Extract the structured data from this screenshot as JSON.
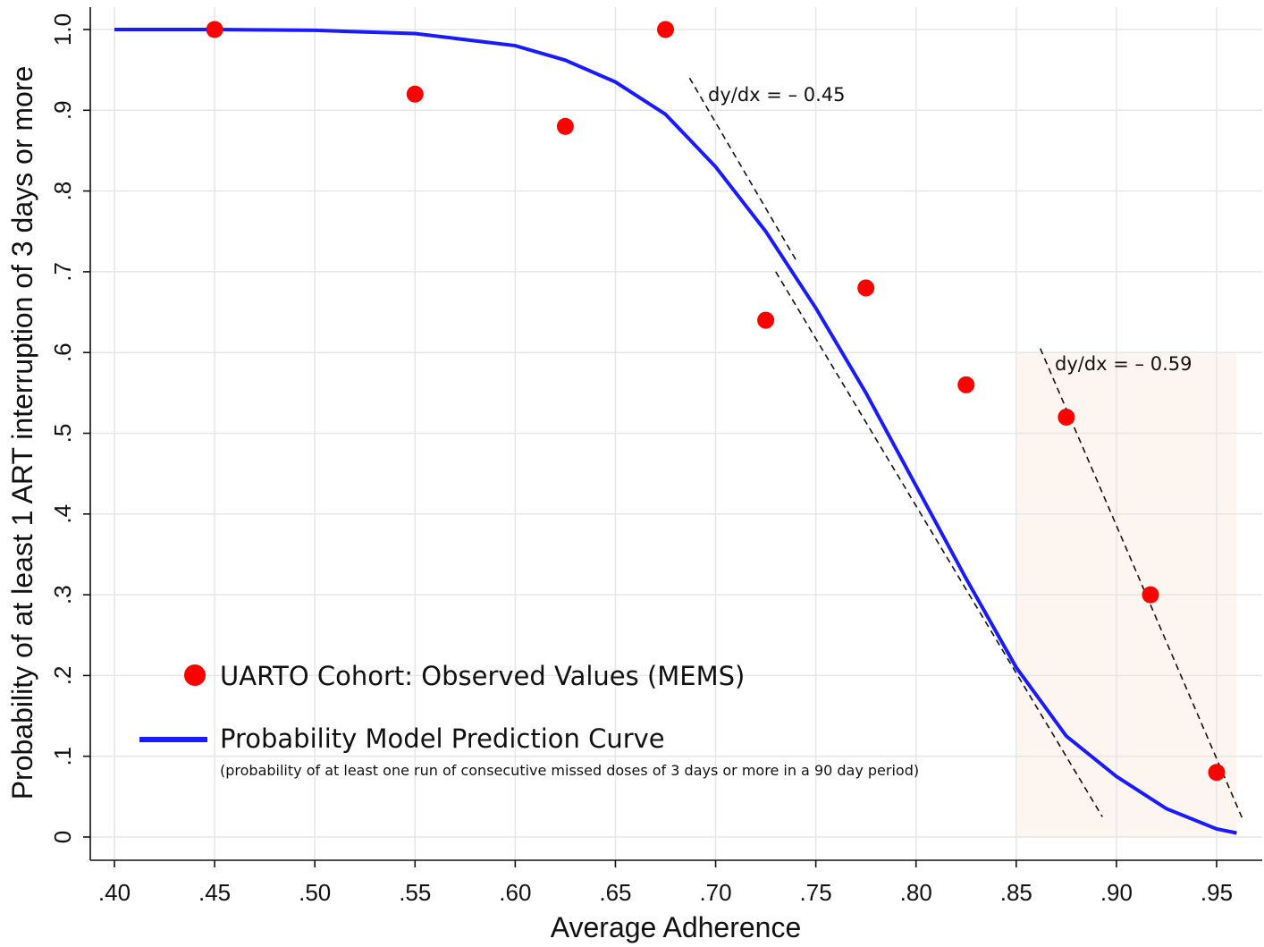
{
  "chart_data": {
    "type": "scatter",
    "xlabel": "Average Adherence",
    "ylabel": "Probability of at least 1 ART interruption of 3 days or more",
    "xlim": [
      0.4,
      0.96
    ],
    "ylim": [
      0,
      1.0
    ],
    "x_ticks": [
      0.4,
      0.45,
      0.5,
      0.55,
      0.6,
      0.65,
      0.7,
      0.75,
      0.8,
      0.85,
      0.9,
      0.95
    ],
    "x_tick_labels": [
      ".40",
      ".45",
      ".50",
      ".55",
      ".60",
      ".65",
      ".70",
      ".75",
      ".80",
      ".85",
      ".90",
      ".95"
    ],
    "y_ticks": [
      0,
      0.1,
      0.2,
      0.3,
      0.4,
      0.5,
      0.6,
      0.7,
      0.8,
      0.9,
      1.0
    ],
    "y_tick_labels": [
      "0",
      ".1",
      ".2",
      ".3",
      ".4",
      ".5",
      ".6",
      ".7",
      ".8",
      ".9",
      "1.0"
    ],
    "grid": true,
    "series": [
      {
        "name": "UARTO Cohort: Observed Values (MEMS)",
        "kind": "scatter",
        "color": "#ff0000",
        "x": [
          0.45,
          0.55,
          0.625,
          0.675,
          0.725,
          0.775,
          0.825,
          0.875,
          0.917,
          0.95
        ],
        "y": [
          1.0,
          0.92,
          0.88,
          1.0,
          0.64,
          0.68,
          0.56,
          0.52,
          0.3,
          0.08
        ]
      },
      {
        "name": "Probability Model Prediction Curve",
        "note": "(probability of at least one run of consecutive missed doses of 3 days or more in a 90 day period)",
        "kind": "line",
        "color": "#1a1aff",
        "x": [
          0.4,
          0.45,
          0.5,
          0.55,
          0.6,
          0.625,
          0.65,
          0.675,
          0.7,
          0.725,
          0.75,
          0.775,
          0.8,
          0.825,
          0.85,
          0.875,
          0.9,
          0.925,
          0.95,
          0.96
        ],
        "y": [
          1.0,
          1.0,
          0.999,
          0.995,
          0.98,
          0.962,
          0.935,
          0.895,
          0.83,
          0.75,
          0.655,
          0.55,
          0.435,
          0.32,
          0.21,
          0.125,
          0.075,
          0.035,
          0.01,
          0.005
        ]
      }
    ],
    "tangents": [
      {
        "label": "dy/dx = – 0.45",
        "x": [
          0.687,
          0.74
        ],
        "y": [
          0.94,
          0.715
        ]
      },
      {
        "label": "dy/dx = – 0.59",
        "x": [
          0.73,
          0.893
        ],
        "y": [
          0.7,
          0.025
        ]
      },
      {
        "label": "",
        "x": [
          0.862,
          0.963
        ],
        "y": [
          0.605,
          0.022
        ]
      }
    ],
    "highlight_region": {
      "x": [
        0.85,
        0.96
      ],
      "y": [
        0,
        0.6
      ],
      "color": "#fdf5ef"
    },
    "legend_position": "bottom-left"
  }
}
